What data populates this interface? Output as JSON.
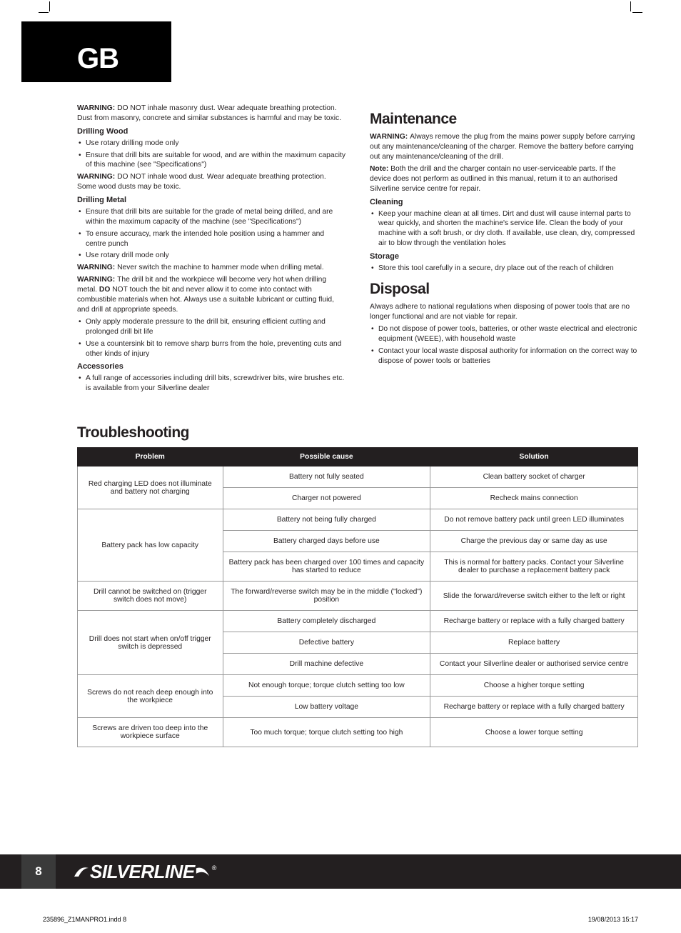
{
  "header": {
    "region": "GB"
  },
  "left": {
    "warn_masonry": "DO NOT inhale masonry dust. Wear adequate breathing protection. Dust from masonry, concrete and similar substances is harmful and may be toxic.",
    "h_wood": "Drilling Wood",
    "wood_b1": "Use rotary drilling mode only",
    "wood_b2": "Ensure that drill bits are suitable for wood, and are within the maximum capacity of this machine (see \"Specifications\")",
    "warn_wood": "DO NOT inhale wood dust. Wear adequate breathing protection. Some wood dusts may be toxic.",
    "h_metal": "Drilling Metal",
    "metal_b1": "Ensure that drill bits are suitable for the grade of metal being drilled, and are within the maximum capacity of the machine (see \"Specifications\")",
    "metal_b2": "To ensure accuracy, mark the intended hole position using a hammer and centre punch",
    "metal_b3": "Use rotary drill mode only",
    "warn_hammer": "Never switch the machine to hammer mode when drilling metal.",
    "warn_hot_pre": "The drill bit and the workpiece will become very hot when drilling metal. ",
    "warn_hot_post": " NOT touch the bit and never allow it to come into contact with combustible materials when hot. Always use a suitable lubricant or cutting fluid, and drill at appropriate speeds.",
    "metal_b4": "Only apply moderate pressure to the drill bit, ensuring efficient cutting and prolonged drill bit life",
    "metal_b5": "Use a countersink bit to remove sharp burrs from the hole, preventing cuts and other kinds of injury",
    "h_acc": "Accessories",
    "acc_b1": "A full range of accessories including drill bits, screwdriver bits, wire brushes etc. is available from your Silverline dealer"
  },
  "right": {
    "h_maint": "Maintenance",
    "warn_maint": "Always remove the plug from the mains power supply before carrying out any maintenance/cleaning of the charger. Remove the battery before carrying out any maintenance/cleaning of the drill.",
    "note_maint": "Both the drill and the charger contain no user-serviceable parts. If the device does not perform as outlined in this manual, return it to an authorised Silverline service centre for repair.",
    "h_clean": "Cleaning",
    "clean_b1": "Keep your machine clean at all times. Dirt and dust will cause internal parts to wear quickly, and shorten the machine's service life. Clean the body of your machine with a soft brush, or dry cloth. If available, use clean, dry, compressed air to blow through the ventilation holes",
    "h_storage": "Storage",
    "storage_b1": "Store this tool carefully in a secure, dry place out of the reach of children",
    "h_disposal": "Disposal",
    "disposal_p": "Always adhere to national regulations when disposing of power tools that are no longer functional and are not viable for repair.",
    "disposal_b1": "Do not dispose of power tools, batteries, or other waste electrical and electronic equipment (WEEE), with household waste",
    "disposal_b2": "Contact your local waste disposal authority for information on the correct way to dispose of power tools or batteries"
  },
  "labels": {
    "warning": "WARNING: ",
    "note": "Note: ",
    "do": "DO"
  },
  "ts": {
    "title": "Troubleshooting",
    "th_problem": "Problem",
    "th_cause": "Possible cause",
    "th_solution": "Solution",
    "rows": [
      {
        "problem": "Red charging LED does not illuminate and battery not charging",
        "cause": "Battery not fully seated",
        "solution": "Clean battery socket of charger",
        "pspan": 2
      },
      {
        "cause": "Charger not powered",
        "solution": "Recheck mains connection"
      },
      {
        "problem": "Battery pack has low capacity",
        "cause": "Battery not being fully charged",
        "solution": "Do not remove battery pack until green LED illuminates",
        "pspan": 3
      },
      {
        "cause": "Battery charged days before use",
        "solution": "Charge the previous day or same day as use"
      },
      {
        "cause": "Battery pack has been charged over 100 times and capacity has started to reduce",
        "solution": "This is normal for battery packs. Contact your Silverline dealer to purchase a replacement battery pack"
      },
      {
        "problem": "Drill cannot be switched on (trigger switch does not move)",
        "cause": "The forward/reverse switch may be in the middle (\"locked\") position",
        "solution": "Slide the forward/reverse switch either to the left or right",
        "pspan": 1
      },
      {
        "problem": "Drill does not start when on/off trigger switch is depressed",
        "cause": "Battery completely discharged",
        "solution": "Recharge battery or replace with a fully charged battery",
        "pspan": 3
      },
      {
        "cause": "Defective battery",
        "solution": "Replace battery"
      },
      {
        "cause": "Drill machine defective",
        "solution": "Contact your Silverline dealer or authorised service centre"
      },
      {
        "problem": "Screws do not reach deep enough into the workpiece",
        "cause": "Not enough torque; torque clutch setting too low",
        "solution": "Choose a higher torque setting",
        "pspan": 2
      },
      {
        "cause": "Low battery voltage",
        "solution": "Recharge battery or replace with a fully charged battery"
      },
      {
        "problem": "Screws are driven too deep into the workpiece surface",
        "cause": "Too much torque; torque clutch setting too high",
        "solution": "Choose a lower torque setting",
        "pspan": 1
      }
    ]
  },
  "footer": {
    "page": "8",
    "brand": "SILVERLINE",
    "file": "235896_Z1MANPRO1.indd   8",
    "date": "19/08/2013   15:17"
  }
}
